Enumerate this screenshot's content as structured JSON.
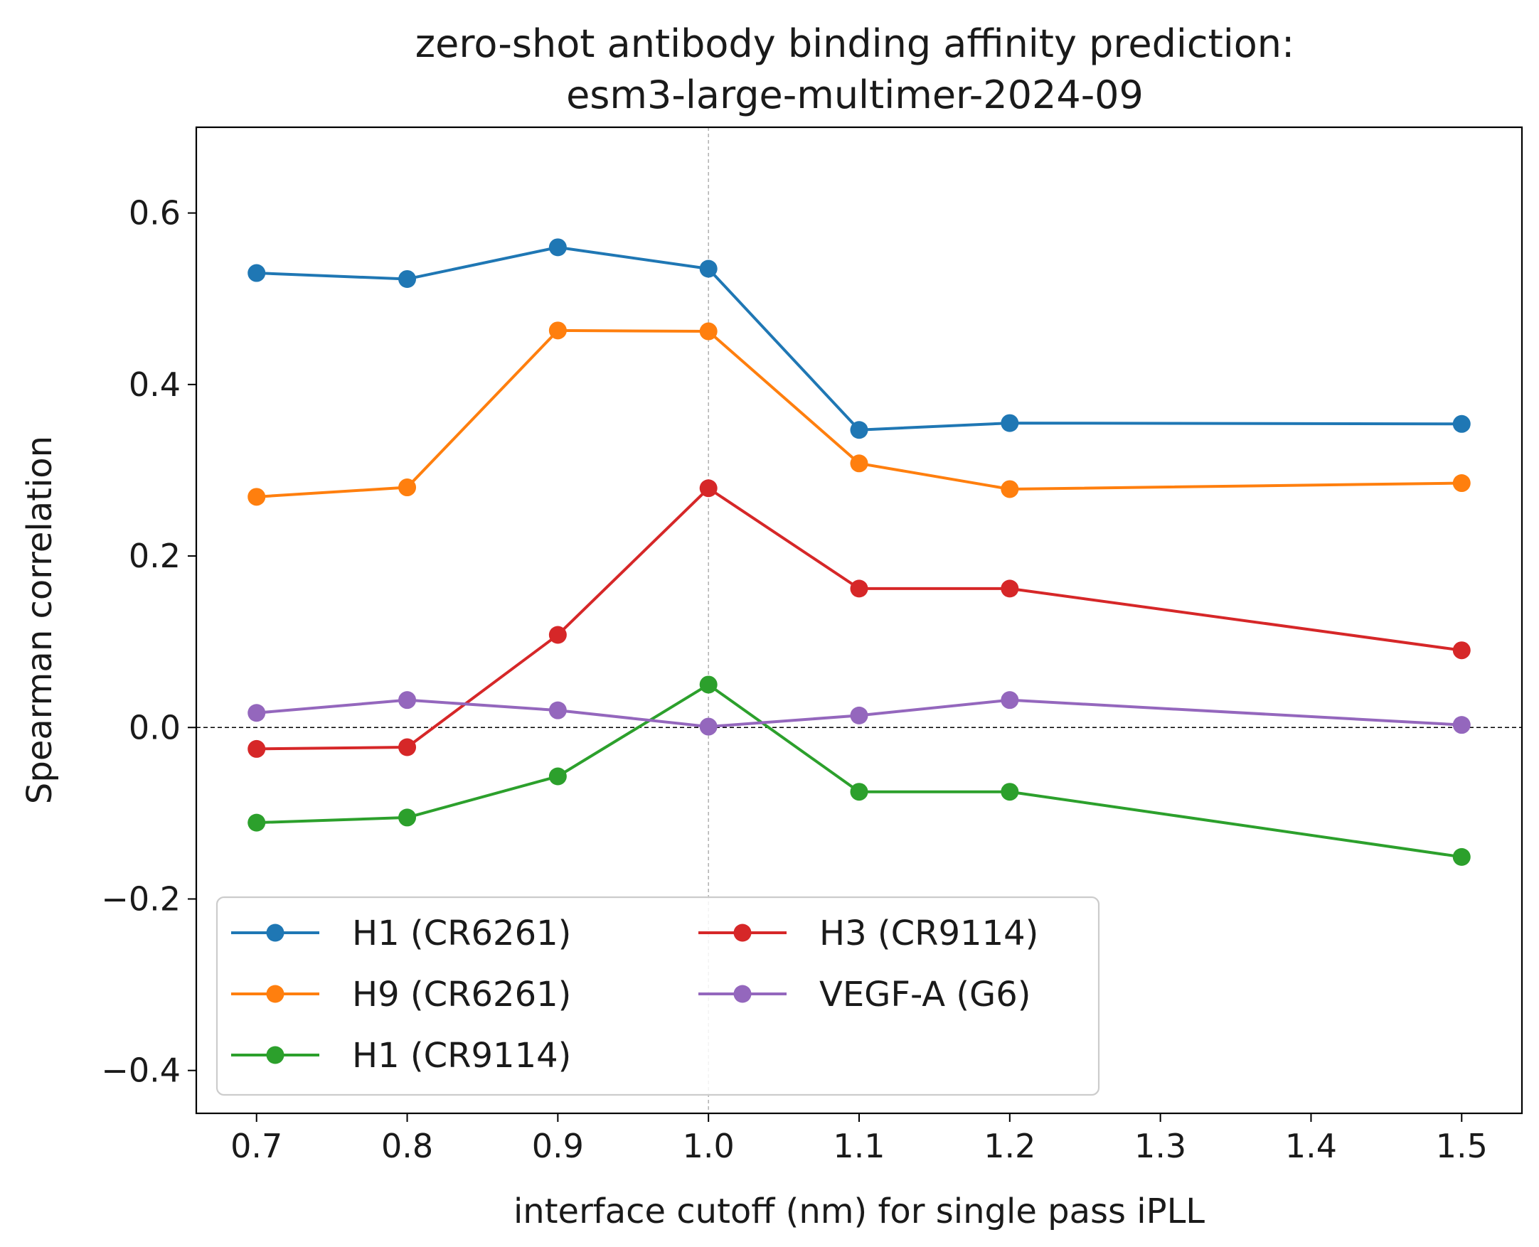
{
  "chart_data": {
    "type": "line",
    "title": "zero-shot antibody binding affinity prediction:",
    "subtitle": "esm3-large-multimer-2024-09",
    "xlabel": "interface cutoff (nm) for single pass iPLL",
    "ylabel": "Spearman correlation",
    "xlim": [
      0.66,
      1.54
    ],
    "ylim": [
      -0.45,
      0.7
    ],
    "xticks": [
      "0.7",
      "0.8",
      "0.9",
      "1.0",
      "1.1",
      "1.2",
      "1.3",
      "1.4",
      "1.5"
    ],
    "yticks": [
      "−0.4",
      "−0.2",
      "0.0",
      "0.2",
      "0.4",
      "0.6"
    ],
    "reference_lines": {
      "horizontal_y": 0.0,
      "vertical_x": 1.0
    },
    "legend_placement": "lower-left",
    "legend_columns": 2,
    "x": [
      0.7,
      0.8,
      0.9,
      1.0,
      1.1,
      1.2,
      1.5
    ],
    "series": [
      {
        "name": "H1 (CR6261)",
        "color": "#1f77b4",
        "values": [
          0.53,
          0.523,
          0.56,
          0.535,
          0.347,
          0.355,
          0.354
        ]
      },
      {
        "name": "H9 (CR6261)",
        "color": "#ff7f0e",
        "values": [
          0.269,
          0.28,
          0.463,
          0.462,
          0.308,
          0.278,
          0.285
        ]
      },
      {
        "name": "H1 (CR9114)",
        "color": "#2ca02c",
        "values": [
          -0.111,
          -0.105,
          -0.057,
          0.05,
          -0.075,
          -0.075,
          -0.151
        ]
      },
      {
        "name": "H3 (CR9114)",
        "color": "#d62728",
        "values": [
          -0.025,
          -0.023,
          0.108,
          0.279,
          0.162,
          0.162,
          0.09
        ]
      },
      {
        "name": "VEGF-A (G6)",
        "color": "#9467bd",
        "values": [
          0.017,
          0.032,
          0.02,
          0.001,
          0.014,
          0.032,
          0.003
        ]
      }
    ]
  }
}
